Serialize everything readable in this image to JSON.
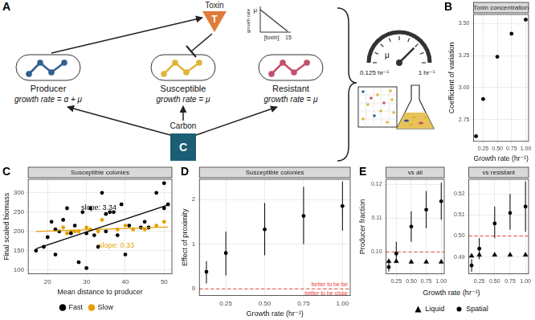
{
  "panel_a": {
    "label": "A",
    "toxin": {
      "symbol": "T",
      "label": "Toxin"
    },
    "cells": [
      {
        "label": "Producer",
        "growth": "growth rate = α + μ"
      },
      {
        "label": "Susceptible",
        "growth": "growth rate = μ"
      },
      {
        "label": "Resistant",
        "growth": "growth rate = μ"
      }
    ],
    "carbon": {
      "symbol": "C",
      "label": "Carbon"
    },
    "inset": {
      "y_label": "growth rate",
      "y_tick": "μ",
      "x_label": "[toxin]",
      "x_tick": "15"
    },
    "gauge": {
      "symbol": "μ",
      "low": "0.125 hr⁻¹",
      "high": "1 hr⁻¹"
    }
  },
  "chart_data": [
    {
      "panel": "B",
      "type": "scatter",
      "title": "Toxin concentration",
      "x_label": "Growth rate (hr⁻¹)",
      "y_label": "Coefficient of variation",
      "xlim": [
        0.08,
        1.05
      ],
      "xticks": [
        0.25,
        {
          "value": 0.5,
          "label": "0.50"
        },
        0.75,
        {
          "value": 1,
          "label": "1.00"
        }
      ],
      "ylim": [
        2.58,
        3.57
      ],
      "yticks": [
        2.75,
        {
          "value": 3,
          "label": "3.00"
        },
        3.25,
        {
          "value": 3.5,
          "label": "3.50"
        }
      ],
      "grid": true,
      "color": "#000000",
      "marker": "circle",
      "x": [
        0.125,
        0.25,
        0.5,
        0.75,
        1
      ],
      "values": [
        2.62,
        2.91,
        3.24,
        3.42,
        3.53
      ],
      "error_low": [
        2.61,
        2.9,
        3.23,
        3.41,
        3.52
      ],
      "error_high": [
        2.63,
        2.92,
        3.25,
        3.43,
        3.54
      ]
    },
    {
      "panel": "C",
      "type": "scatter",
      "title": "Susceptible colonies",
      "x_label": "Mean distance to producer",
      "y_label": "Final scaled biomass",
      "xlim": [
        15,
        52
      ],
      "xticks": [
        20,
        30,
        40,
        50
      ],
      "ylim": [
        90,
        335
      ],
      "yticks": [
        100,
        150,
        200,
        250,
        300
      ],
      "grid": true,
      "legend": "bottom",
      "series": [
        {
          "name": "Fast",
          "color": "#000000",
          "marker": "circle",
          "x": [
            17,
            19,
            20,
            21,
            22,
            22,
            23,
            24,
            25,
            26,
            27,
            28,
            29,
            30,
            30,
            31,
            32,
            33,
            34,
            35,
            35,
            36,
            37,
            38,
            39,
            40,
            41,
            44,
            45,
            46,
            48,
            50,
            50,
            51
          ],
          "values": [
            150,
            160,
            185,
            225,
            140,
            205,
            200,
            230,
            260,
            195,
            215,
            120,
            250,
            105,
            195,
            260,
            190,
            160,
            300,
            200,
            245,
            250,
            250,
            190,
            270,
            140,
            215,
            210,
            225,
            210,
            300,
            325,
            260,
            270
          ],
          "fit": {
            "x": [
              17,
              51
            ],
            "values": [
              155,
              268.6
            ],
            "label": "slope: 3.34"
          }
        },
        {
          "name": "Slow",
          "color": "#E69F00",
          "marker": "circle",
          "x": [
            22,
            24,
            25,
            26,
            27,
            28,
            30,
            31,
            33,
            34,
            38,
            40,
            42,
            45,
            48,
            50
          ],
          "values": [
            205,
            210,
            195,
            200,
            200,
            200,
            210,
            205,
            200,
            230,
            205,
            215,
            205,
            205,
            215,
            225
          ],
          "fit": {
            "x": [
              17,
              51
            ],
            "values": [
              200,
              211.2
            ],
            "label": "slope: 0.33"
          }
        }
      ]
    },
    {
      "panel": "D",
      "type": "scatter",
      "title": "Susceptible colonies",
      "x_label": "Growth rate (hr⁻¹)",
      "y_label": "Effect of proximity",
      "xlim": [
        0.08,
        1.05
      ],
      "xticks": [
        0.25,
        {
          "value": 0.5,
          "label": "0.50"
        },
        0.75,
        {
          "value": 1,
          "label": "1.00"
        }
      ],
      "ylim": [
        -0.15,
        2.45
      ],
      "yticks": [
        0,
        1,
        2
      ],
      "grid": true,
      "color": "#000000",
      "marker": "circle",
      "x": [
        0.125,
        0.25,
        0.5,
        0.75,
        1
      ],
      "values": [
        0.38,
        0.8,
        1.33,
        1.63,
        1.85
      ],
      "error_low": [
        0.12,
        0.3,
        0.75,
        1.0,
        1.3
      ],
      "error_high": [
        0.62,
        1.28,
        1.92,
        2.28,
        2.4
      ],
      "reference_line": {
        "value": 0,
        "color": "#e8413c",
        "line_style": "dashed",
        "labels": [
          "better to be far",
          "better to be close"
        ]
      }
    },
    {
      "panel": "E",
      "type": "scatter",
      "x_label": "Growth rate (hr⁻¹)",
      "y_label": "Producer fraction",
      "xlim": [
        0.08,
        1.05
      ],
      "xticks": [
        0.25,
        {
          "value": 0.5,
          "label": "0.50"
        },
        0.75,
        {
          "value": 1,
          "label": "1.00"
        }
      ],
      "grid": true,
      "legend": "bottom",
      "facets": [
        {
          "title": "vs all",
          "ylim": [
            0.0935,
            0.1215
          ],
          "yticks": [
            {
              "value": 0.1,
              "label": "0.10"
            },
            0.11,
            0.12
          ],
          "reference_line": {
            "value": 0.1,
            "color": "#e8413c",
            "line_style": "dashed"
          },
          "series": [
            {
              "name": "Liquid",
              "color": "#000000",
              "marker": "triangle",
              "x": [
                0.125,
                0.25,
                0.5,
                0.75,
                1
              ],
              "values": [
                0.0972,
                0.0972,
                0.097,
                0.097,
                0.097
              ]
            },
            {
              "name": "Spatial",
              "color": "#000000",
              "marker": "circle",
              "x": [
                0.125,
                0.25,
                0.5,
                0.75,
                1
              ],
              "values": [
                0.0955,
                0.0995,
                0.1075,
                0.1125,
                0.115
              ],
              "error_low": [
                0.0942,
                0.097,
                0.103,
                0.107,
                0.1095
              ],
              "error_high": [
                0.097,
                0.103,
                0.112,
                0.118,
                0.1205
              ]
            }
          ]
        },
        {
          "title": "vs resistant",
          "ylim": [
            0.482,
            0.527
          ],
          "yticks": [
            0.49,
            {
              "value": 0.5,
              "label": "0.50"
            },
            0.51,
            0.52
          ],
          "reference_line": {
            "value": 0.5,
            "color": "#e8413c",
            "line_style": "dashed"
          },
          "series": [
            {
              "name": "Liquid",
              "color": "#000000",
              "marker": "triangle",
              "x": [
                0.125,
                0.25,
                0.5,
                0.75,
                1
              ],
              "values": [
                0.4905,
                0.491,
                0.491,
                0.491,
                0.491
              ]
            },
            {
              "name": "Spatial",
              "color": "#000000",
              "marker": "circle",
              "x": [
                0.125,
                0.25,
                0.5,
                0.75,
                1
              ],
              "values": [
                0.486,
                0.494,
                0.506,
                0.511,
                0.514
              ],
              "error_low": [
                0.483,
                0.489,
                0.499,
                0.503,
                0.502
              ],
              "error_high": [
                0.489,
                0.499,
                0.514,
                0.52,
                0.526
              ]
            }
          ]
        }
      ]
    }
  ]
}
